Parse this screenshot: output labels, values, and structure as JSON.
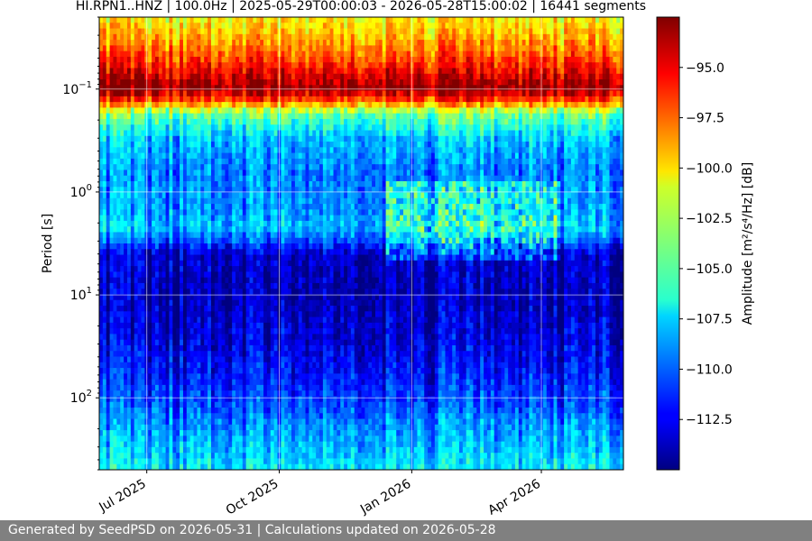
{
  "chart_data": {
    "type": "heatmap",
    "title": "HI.RPN1..HNZ | 100.0Hz | 2025-05-29T00:00:03 - 2026-05-28T15:00:02 | 16441 segments",
    "xlabel": "",
    "ylabel": "Period [s]",
    "x_range": [
      "2025-05-29",
      "2026-05-28"
    ],
    "x_ticks": [
      {
        "date": "2025-07-01",
        "label": "Jul 2025"
      },
      {
        "date": "2025-10-01",
        "label": "Oct 2025"
      },
      {
        "date": "2026-01-01",
        "label": "Jan 2026"
      },
      {
        "date": "2026-04-01",
        "label": "Apr 2026"
      }
    ],
    "y_scale": "log",
    "y_inverted": true,
    "y_range": [
      0.02,
      500
    ],
    "y_ticks": [
      {
        "value": 0.1,
        "base": "10",
        "exp": "−1"
      },
      {
        "value": 1,
        "base": "10",
        "exp": "0"
      },
      {
        "value": 10,
        "base": "10",
        "exp": "1"
      },
      {
        "value": 100,
        "base": "10",
        "exp": "2"
      }
    ],
    "grid": true,
    "colormap": "jet",
    "colorbar": {
      "label": "Amplitude [m²/s⁴/Hz] [dB]",
      "range": [
        -115,
        -92.5
      ],
      "ticks": [
        {
          "value": -95.0,
          "label": "−95.0"
        },
        {
          "value": -97.5,
          "label": "−97.5"
        },
        {
          "value": -100.0,
          "label": "−100.0"
        },
        {
          "value": -102.5,
          "label": "−102.5"
        },
        {
          "value": -105.0,
          "label": "−105.0"
        },
        {
          "value": -107.5,
          "label": "−107.5"
        },
        {
          "value": -110.0,
          "label": "−110.0"
        },
        {
          "value": -112.5,
          "label": "−112.5"
        }
      ]
    },
    "period_profile": [
      {
        "period": 0.02,
        "db": -101
      },
      {
        "period": 0.035,
        "db": -99
      },
      {
        "period": 0.06,
        "db": -96
      },
      {
        "period": 0.08,
        "db": -94
      },
      {
        "period": 0.1,
        "db": -93
      },
      {
        "period": 0.13,
        "db": -97
      },
      {
        "period": 0.17,
        "db": -104
      },
      {
        "period": 0.3,
        "db": -108
      },
      {
        "period": 0.6,
        "db": -109.5
      },
      {
        "period": 1.5,
        "db": -109
      },
      {
        "period": 2.2,
        "db": -108
      },
      {
        "period": 3.0,
        "db": -110.5
      },
      {
        "period": 4.0,
        "db": -113.5
      },
      {
        "period": 10,
        "db": -114
      },
      {
        "period": 30,
        "db": -113
      },
      {
        "period": 100,
        "db": -111
      },
      {
        "period": 200,
        "db": -109
      },
      {
        "period": 500,
        "db": -107
      }
    ]
  },
  "footer": "Generated by SeedPSD on 2026-05-31 | Calculations updated on 2026-05-28"
}
